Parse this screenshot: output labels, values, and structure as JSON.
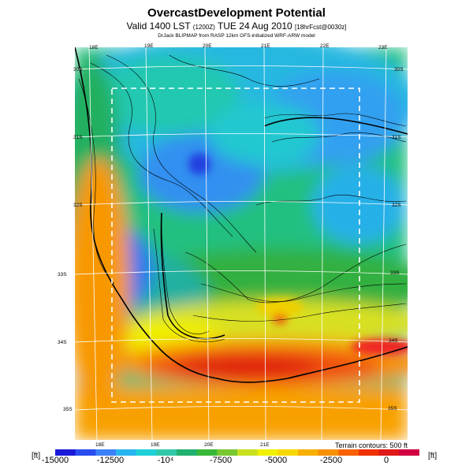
{
  "header": {
    "title": "OvercastDevelopment Potential",
    "valid_main": "Valid 1400 LST",
    "valid_small1": "(1200Z)",
    "valid_date": "TUE 24 Aug 2010",
    "valid_small2": "[18hrFcst@0030z]",
    "credit": "DrJack BLIPMAP from RASP 12km GFS-initialized WRF-ARW model"
  },
  "map": {
    "top_lon_labels": [
      "18E",
      "19E",
      "20E",
      "21E",
      "22E",
      "23E"
    ],
    "bottom_lon_labels": [
      "18E",
      "19E",
      "20E",
      "21E"
    ],
    "left_lat_labels": [
      "30S",
      "31S",
      "32S",
      "33S",
      "34S",
      "35S"
    ],
    "right_lat_labels": [
      "30S",
      "31S",
      "32S",
      "33S",
      "34S",
      "35S"
    ],
    "terrain_note": "Terrain contours: 500 ft"
  },
  "colorbar": {
    "unit_left": "[ft]",
    "unit_right": "[ft]",
    "ticks": [
      "-15000",
      "-12500",
      "-10⁴",
      "-7500",
      "-5000",
      "-2500",
      "0"
    ],
    "tick_values": [
      -15000,
      -12500,
      -10000,
      -7500,
      -5000,
      -2500,
      0
    ],
    "range": [
      -15000,
      1500
    ],
    "colors": [
      "#1a1ad8",
      "#2a4cf0",
      "#3a80f8",
      "#28b4f0",
      "#20d0d8",
      "#30c8a8",
      "#20b070",
      "#38b838",
      "#78c830",
      "#c8e020",
      "#f0f000",
      "#f8d800",
      "#f8b000",
      "#f89000",
      "#f86000",
      "#f03000",
      "#e01818",
      "#d00040"
    ]
  }
}
